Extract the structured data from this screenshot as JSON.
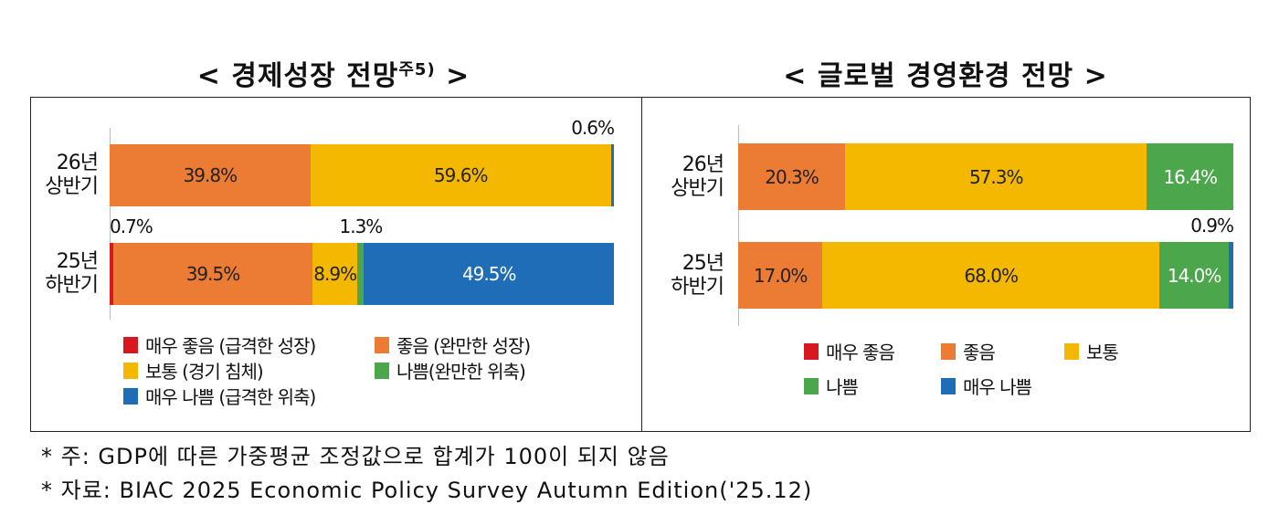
{
  "colors": {
    "매우 좋음": "#d7181f",
    "좋음": "#ec7b34",
    "보통": "#f5b800",
    "나쁨": "#4ca64c",
    "매우 나쁨": "#1e6db6"
  },
  "chart_data": [
    {
      "type": "bar",
      "orientation": "horizontal-stacked",
      "title": "< 경제성장 전망",
      "title_sup": "주5)",
      "title_end": ">",
      "categories": [
        "26년\n상반기",
        "25년\n하반기"
      ],
      "category_lines": [
        [
          "26년",
          "상반기"
        ],
        [
          "25년",
          "하반기"
        ]
      ],
      "series": [
        {
          "key": "매우 좋음",
          "name": "매우 좋음 (급격한 성장)",
          "values": [
            0,
            0.7
          ],
          "labels": [
            "",
            "0.7%"
          ]
        },
        {
          "key": "좋음",
          "name": "좋음 (완만한 성장)",
          "values": [
            39.8,
            39.5
          ],
          "labels": [
            "39.8%",
            "39.5%"
          ]
        },
        {
          "key": "보통",
          "name": "보통 (경기 침체)",
          "values": [
            59.6,
            8.9
          ],
          "labels": [
            "59.6%",
            "8.9%"
          ]
        },
        {
          "key": "나쁨",
          "name": "나쁨(완만한 위축)",
          "values": [
            0,
            1.3
          ],
          "labels": [
            "",
            "1.3%"
          ]
        },
        {
          "key": "매우 나쁨",
          "name": "매우 나쁨 (급격한 위축)",
          "values": [
            0.6,
            49.5
          ],
          "labels": [
            "0.6%",
            "49.5%"
          ]
        }
      ],
      "legend_order": [
        0,
        1,
        2,
        3,
        4
      ],
      "legend_position": "bottom",
      "xlim": [
        0,
        100
      ]
    },
    {
      "type": "bar",
      "orientation": "horizontal-stacked",
      "title": "< 글로벌 경영환경 전망 >",
      "categories": [
        "26년\n상반기",
        "25년\n하반기"
      ],
      "category_lines": [
        [
          "26년",
          "상반기"
        ],
        [
          "25년",
          "하반기"
        ]
      ],
      "series": [
        {
          "key": "매우 좋음",
          "name": "매우 좋음",
          "values": [
            0,
            0
          ],
          "labels": [
            "",
            ""
          ]
        },
        {
          "key": "좋음",
          "name": "좋음",
          "values": [
            20.3,
            17.0
          ],
          "labels": [
            "20.3%",
            "17.0%"
          ]
        },
        {
          "key": "보통",
          "name": "보통",
          "values": [
            57.3,
            68.0
          ],
          "labels": [
            "57.3%",
            "68.0%"
          ]
        },
        {
          "key": "나쁨",
          "name": "나쁨",
          "values": [
            16.4,
            14.0
          ],
          "labels": [
            "16.4%",
            "14.0%"
          ]
        },
        {
          "key": "매우 나쁨",
          "name": "매우 나쁨",
          "values": [
            0,
            0.9
          ],
          "labels": [
            "",
            "0.9%"
          ]
        }
      ],
      "legend_position": "bottom"
    }
  ],
  "notes": [
    "* 주: GDP에 따른 가중평균 조정값으로 합계가 100이 되지 않음",
    "* 자료: BIAC 2025 Economic Policy Survey Autumn Edition('25.12)"
  ]
}
